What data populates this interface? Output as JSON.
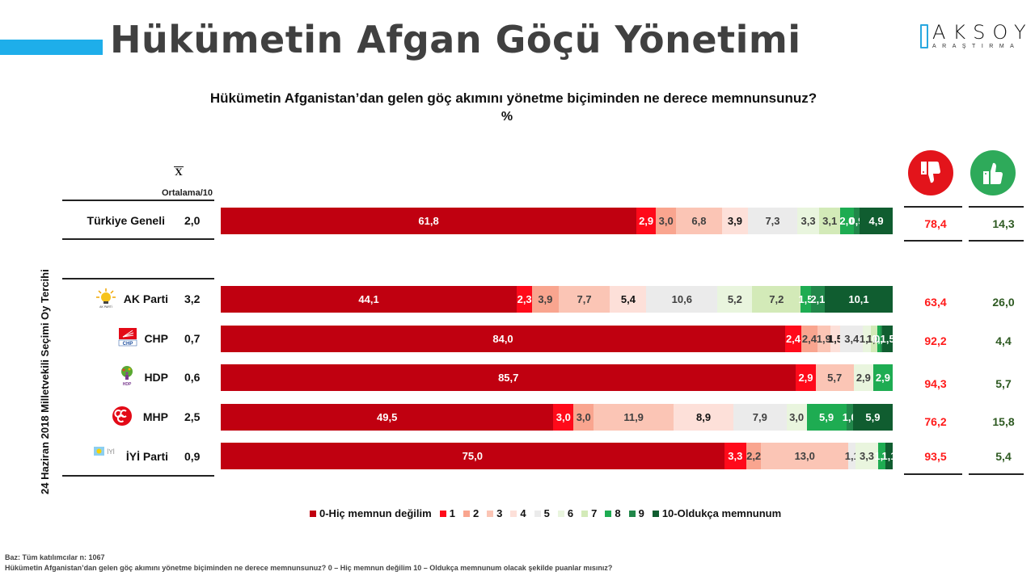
{
  "header": {
    "title": "Hükümetin Afgan Göçü Yönetimi",
    "logo_main": "AKSOY",
    "logo_sub": "ARAŞTIRMA",
    "accent_color": "#1eaeea"
  },
  "question": "Hükümetin Afganistan’dan gelen göç akımını yönetme biçiminden ne derece memnunsunuz?",
  "unit": "%",
  "avg_header": {
    "symbol": "X",
    "label": "Ortalama/10"
  },
  "side_label": "24 Haziran 2018 Milletvekili Seçimi Oy Tercihi",
  "summary_icons": {
    "negative": "thumbs-down-icon",
    "positive": "thumbs-up-icon",
    "negative_color": "#e3141b",
    "positive_color": "#2eaa5a"
  },
  "colors": [
    "#c00010",
    "#ff0a1a",
    "#f9a58f",
    "#fbc5b5",
    "#fde0d9",
    "#ebebeb",
    "#e9f5de",
    "#d3eab8",
    "#1eac52",
    "#21874a",
    "#105d30"
  ],
  "chart_data": {
    "type": "bar",
    "orientation": "horizontal-stacked-100",
    "title": "Hükümetin Afganistan’dan gelen göç akımını yönetme biçiminden ne derece memnunsunuz?",
    "subtitle": "%",
    "legend": [
      "0-Hiç memnun değilim",
      "1",
      "2",
      "3",
      "4",
      "5",
      "6",
      "7",
      "8",
      "9",
      "10-Oldukça memnunum"
    ],
    "legend_position": "bottom",
    "categories": [
      "Türkiye Geneli",
      "AK Parti",
      "CHP",
      "HDP",
      "MHP",
      "İYİ Parti"
    ],
    "averages": [
      "2,0",
      "3,2",
      "0,7",
      "0,6",
      "2,5",
      "0,9"
    ],
    "negative_totals": [
      "78,4",
      "63,4",
      "92,2",
      "94,3",
      "76,2",
      "93,5"
    ],
    "positive_totals": [
      "14,3",
      "26,0",
      "4,4",
      "5,7",
      "15,8",
      "5,4"
    ],
    "rows": [
      {
        "name": "Türkiye Geneli",
        "values": [
          61.8,
          2.9,
          3.0,
          6.8,
          3.9,
          7.3,
          3.3,
          3.1,
          2.0,
          0.9,
          4.9
        ]
      },
      {
        "name": "AK Parti",
        "values": [
          44.1,
          2.3,
          3.9,
          7.7,
          5.4,
          10.6,
          5.2,
          7.2,
          1.5,
          2.1,
          10.1
        ]
      },
      {
        "name": "CHP",
        "values": [
          84.0,
          2.4,
          2.4,
          1.9,
          1.5,
          3.4,
          1.1,
          1.0,
          0.5,
          0.3,
          1.5
        ]
      },
      {
        "name": "HDP",
        "values": [
          85.7,
          2.9,
          0,
          5.7,
          0,
          0,
          2.9,
          0,
          2.9,
          0,
          0
        ]
      },
      {
        "name": "MHP",
        "values": [
          49.5,
          3.0,
          3.0,
          11.9,
          8.9,
          7.9,
          3.0,
          0,
          5.9,
          1.0,
          5.9
        ]
      },
      {
        "name": "İYİ Parti",
        "values": [
          75.0,
          3.3,
          2.2,
          13.0,
          0,
          1.1,
          3.3,
          0,
          1.1,
          0,
          1.1
        ]
      }
    ],
    "xlim": [
      0,
      100
    ],
    "grid": false
  },
  "rows": [
    {
      "label": "Türkiye Geneli",
      "avg": "2,0",
      "neg": "78,4",
      "pos": "14,3",
      "labels": [
        "61,8",
        "2,9",
        "3,0",
        "6,8",
        "3,9",
        "7,3",
        "3,3",
        "3,1",
        "2,0",
        "0,9",
        "4,9"
      ]
    },
    {
      "label": "AK Parti",
      "logo": "ak-parti-logo",
      "logo_text": "AK PARTİ",
      "avg": "3,2",
      "neg": "63,4",
      "pos": "26,0",
      "labels": [
        "44,1",
        "2,3",
        "3,9",
        "7,7",
        "5,4",
        "10,6",
        "5,2",
        "7,2",
        "1,5",
        "2,1",
        "10,1"
      ]
    },
    {
      "label": "CHP",
      "logo": "chp-logo",
      "logo_text": "CHP",
      "avg": "0,7",
      "neg": "92,2",
      "pos": "4,4",
      "labels": [
        "84,0",
        "2,4",
        "2,4",
        "1,9",
        "1,5",
        "3,4",
        "1,1",
        "1,0",
        "0,5",
        "0,3",
        "1,5"
      ]
    },
    {
      "label": "HDP",
      "logo": "hdp-logo",
      "logo_text": "HDP",
      "avg": "0,6",
      "neg": "94,3",
      "pos": "5,7",
      "labels": [
        "85,7",
        "2,9",
        "",
        "5,7",
        "",
        "",
        "2,9",
        "",
        "2,9",
        "",
        ""
      ]
    },
    {
      "label": "MHP",
      "logo": "mhp-logo",
      "avg": "2,5",
      "neg": "76,2",
      "pos": "15,8",
      "labels": [
        "49,5",
        "3,0",
        "3,0",
        "11,9",
        "8,9",
        "7,9",
        "3,0",
        "",
        "5,9",
        "1,0",
        "5,9"
      ]
    },
    {
      "label": "İYİ Parti",
      "logo": "iyi-parti-logo",
      "logo_text": "İYİ",
      "avg": "0,9",
      "neg": "93,5",
      "pos": "5,4",
      "labels": [
        "75,0",
        "3,3",
        "2,2",
        "13,0",
        "",
        "1,1",
        "3,3",
        "",
        "1,1",
        "",
        "1,1"
      ]
    }
  ],
  "legend": [
    "0-Hiç memnun değilim",
    "1",
    "2",
    "3",
    "4",
    "5",
    "6",
    "7",
    "8",
    "9",
    "10-Oldukça memnunum"
  ],
  "footnotes": {
    "base": "Baz: Tüm katılımcılar n: 1067",
    "question_full": "Hükümetin Afganistan’dan gelen göç akımını yönetme biçiminden ne derece memnunsunuz? 0 – Hiç memnun değilim 10 – Oldukça memnunum olacak şekilde puanlar mısınız?"
  }
}
